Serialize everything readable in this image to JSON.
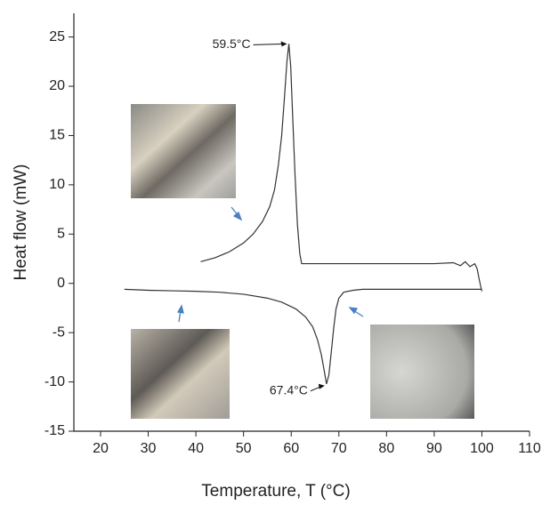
{
  "chart_data": {
    "type": "line",
    "xlabel": "Temperature, T (°C)",
    "ylabel": "Heat flow (mW)",
    "xlim": [
      14.4,
      110
    ],
    "ylim": [
      -15,
      27.4
    ],
    "xticks": [
      20,
      30,
      40,
      50,
      60,
      70,
      80,
      90,
      100,
      110
    ],
    "yticks": [
      -15,
      -10,
      -5,
      0,
      5,
      10,
      15,
      20,
      25
    ],
    "series": [
      {
        "color": "#333333",
        "x": [
          41,
          44,
          47,
          50,
          52,
          54,
          55.5,
          56.5,
          57.3,
          58,
          58.6,
          59.1,
          59.5,
          59.9,
          60.3,
          60.8,
          61.3,
          61.8,
          62.2,
          65,
          70,
          75,
          80,
          85,
          90,
          94,
          95.5,
          96.5,
          97.5,
          98.5,
          99,
          99.4,
          99.8,
          100
        ],
        "y": [
          2.2,
          2.6,
          3.2,
          4.1,
          5.0,
          6.3,
          7.8,
          9.5,
          12,
          15,
          19,
          22.5,
          24.3,
          22,
          17,
          11,
          6,
          3,
          2.0,
          2.0,
          2.0,
          2.0,
          2.0,
          2.0,
          2.0,
          2.1,
          1.8,
          2.2,
          1.7,
          2.0,
          1.5,
          0.5,
          -0.4,
          -0.8
        ]
      },
      {
        "color": "#333333",
        "x": [
          25,
          30,
          35,
          40,
          45,
          50,
          55,
          58,
          61,
          63,
          64.5,
          65.5,
          66.3,
          66.9,
          67.4,
          67.9,
          68.4,
          68.9,
          69.4,
          70,
          71,
          73,
          75,
          80,
          85,
          90,
          95,
          100
        ],
        "y": [
          -0.6,
          -0.7,
          -0.75,
          -0.8,
          -0.9,
          -1.1,
          -1.5,
          -1.9,
          -2.6,
          -3.4,
          -4.4,
          -5.7,
          -7.2,
          -8.8,
          -10.2,
          -9.3,
          -7.0,
          -4.6,
          -2.6,
          -1.5,
          -0.9,
          -0.7,
          -0.6,
          -0.6,
          -0.6,
          -0.6,
          -0.6,
          -0.6
        ]
      }
    ],
    "annotations": [
      {
        "text": "59.5°C",
        "x": 59.5,
        "y": 24.3
      },
      {
        "text": "67.4°C",
        "x": 67.4,
        "y": -10.2
      }
    ]
  }
}
